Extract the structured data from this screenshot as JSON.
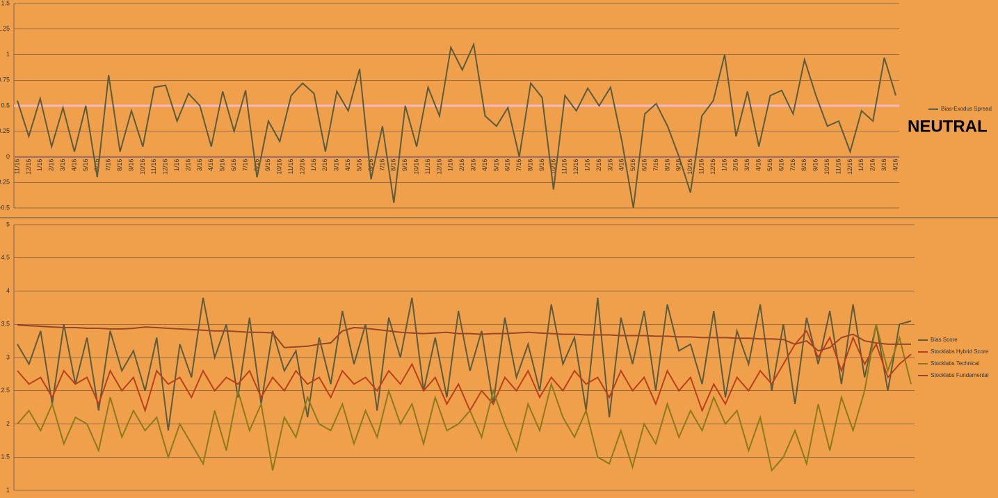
{
  "chart_data": [
    {
      "type": "line",
      "annotation": "NEUTRAL",
      "categories": [
        "11/16",
        "12/16",
        "1/16",
        "2/16",
        "3/16",
        "4/16",
        "5/16",
        "6/16",
        "7/16",
        "8/16",
        "9/16",
        "10/16",
        "11/16",
        "12/16",
        "1/16",
        "2/16",
        "3/16",
        "4/16",
        "5/16",
        "6/16",
        "7/16",
        "8/16",
        "9/16",
        "10/16",
        "11/16",
        "12/16",
        "1/16",
        "2/16",
        "3/16",
        "4/16",
        "5/16",
        "6/16",
        "7/16",
        "8/16",
        "9/16",
        "10/16",
        "11/16",
        "12/16",
        "1/16",
        "2/16",
        "3/16",
        "4/16",
        "5/16",
        "6/16",
        "7/16",
        "8/16",
        "9/16",
        "10/16",
        "11/16",
        "12/16",
        "1/16",
        "2/16",
        "3/16",
        "4/16",
        "5/16",
        "6/16",
        "7/16",
        "8/16",
        "9/16",
        "10/16",
        "11/16",
        "12/16",
        "1/16",
        "2/16",
        "3/16",
        "4/16",
        "5/16",
        "6/16",
        "7/16",
        "8/16",
        "9/16",
        "10/16",
        "11/16",
        "12/16",
        "1/16",
        "2/16",
        "3/16",
        "4/16"
      ],
      "series": [
        {
          "name": "Bias-Exodus Spread",
          "color": "#5b5b3e",
          "values": [
            0.55,
            0.2,
            0.57,
            0.1,
            0.48,
            0.05,
            0.5,
            -0.2,
            0.8,
            0.05,
            0.45,
            0.1,
            0.68,
            0.7,
            0.35,
            0.62,
            0.5,
            0.1,
            0.64,
            0.25,
            0.65,
            -0.2,
            0.35,
            0.15,
            0.6,
            0.72,
            0.62,
            0.05,
            0.64,
            0.45,
            0.86,
            -0.22,
            0.3,
            -0.45,
            0.5,
            0.1,
            0.68,
            0.4,
            1.07,
            0.85,
            1.1,
            0.4,
            0.3,
            0.48,
            0.0,
            0.72,
            0.58,
            -0.32,
            0.6,
            0.45,
            0.67,
            0.5,
            0.68,
            0.15,
            -0.5,
            0.42,
            0.52,
            0.3,
            0.0,
            -0.35,
            0.4,
            0.55,
            1.0,
            0.2,
            0.64,
            0.1,
            0.6,
            0.65,
            0.42,
            0.95,
            0.6,
            0.3,
            0.35,
            0.05,
            0.45,
            0.35,
            0.97,
            0.6
          ]
        }
      ],
      "reference_line": {
        "value": 0.5,
        "color": "#f4b8c0"
      },
      "ylim": [
        -0.5,
        1.5
      ],
      "yticks": [
        -0.5,
        -0.25,
        0,
        0.25,
        0.5,
        0.75,
        1,
        1.25,
        1.5
      ],
      "grid": true
    },
    {
      "type": "line",
      "series": [
        {
          "name": "Bias Score",
          "color": "#5b5b3e",
          "values": [
            3.2,
            2.9,
            3.4,
            2.3,
            3.5,
            2.6,
            3.3,
            2.2,
            3.4,
            2.8,
            3.1,
            2.5,
            3.3,
            1.9,
            3.2,
            2.7,
            3.9,
            3.0,
            3.5,
            2.4,
            3.6,
            2.3,
            3.4,
            2.8,
            3.1,
            2.1,
            3.3,
            2.6,
            3.7,
            2.9,
            3.5,
            2.2,
            3.6,
            3.0,
            3.9,
            2.5,
            3.3,
            2.4,
            3.7,
            2.8,
            3.4,
            2.3,
            3.6,
            2.7,
            3.2,
            2.5,
            3.8,
            2.9,
            3.3,
            2.2,
            3.9,
            2.1,
            3.6,
            2.9,
            3.7,
            2.5,
            3.8,
            3.1,
            3.2,
            2.6,
            3.7,
            2.4,
            3.4,
            2.9,
            3.8,
            2.5,
            3.5,
            2.3,
            3.6,
            2.9,
            3.7,
            2.6,
            3.8,
            2.7,
            3.5,
            2.5,
            3.5,
            3.55
          ]
        },
        {
          "name": "Stocklabs Hybrid Score",
          "color": "#b8401c",
          "values": [
            2.8,
            2.6,
            2.7,
            2.4,
            2.8,
            2.6,
            2.7,
            2.3,
            2.8,
            2.5,
            2.7,
            2.2,
            2.8,
            2.6,
            2.7,
            2.4,
            2.8,
            2.5,
            2.7,
            2.6,
            2.8,
            2.4,
            2.7,
            2.5,
            2.8,
            2.6,
            2.7,
            2.4,
            2.8,
            2.6,
            2.7,
            2.5,
            2.8,
            2.6,
            2.9,
            2.5,
            2.7,
            2.3,
            2.6,
            2.2,
            2.5,
            2.3,
            2.7,
            2.5,
            2.8,
            2.4,
            2.7,
            2.5,
            2.8,
            2.6,
            2.7,
            2.4,
            2.8,
            2.5,
            2.7,
            2.3,
            2.8,
            2.5,
            2.7,
            2.2,
            2.6,
            2.3,
            2.7,
            2.5,
            2.8,
            2.6,
            2.9,
            3.2,
            3.4,
            3.0,
            3.3,
            2.8,
            3.3,
            2.9,
            3.2,
            2.7,
            2.9,
            3.05
          ]
        },
        {
          "name": "Stocklabs Technical",
          "color": "#8c7a1a",
          "values": [
            2.0,
            2.2,
            1.9,
            2.3,
            1.7,
            2.1,
            2.0,
            1.6,
            2.4,
            1.8,
            2.2,
            1.9,
            2.1,
            1.5,
            2.0,
            1.7,
            1.4,
            2.2,
            1.6,
            2.5,
            1.9,
            2.3,
            1.3,
            2.1,
            1.8,
            2.4,
            2.0,
            1.9,
            2.3,
            1.7,
            2.2,
            1.8,
            2.5,
            2.0,
            2.3,
            1.7,
            2.4,
            1.9,
            2.0,
            2.2,
            1.8,
            2.5,
            2.0,
            1.6,
            2.3,
            1.9,
            2.6,
            2.1,
            1.8,
            2.2,
            1.5,
            1.4,
            1.9,
            1.35,
            2.0,
            1.7,
            2.3,
            1.8,
            2.2,
            1.9,
            2.4,
            2.0,
            2.2,
            1.6,
            2.1,
            1.3,
            1.5,
            1.9,
            1.4,
            2.3,
            1.6,
            2.4,
            1.9,
            2.5,
            3.5,
            2.8,
            3.3,
            2.6
          ]
        },
        {
          "name": "Stocklabs Fundamental",
          "color": "#9a4428",
          "values": [
            3.49,
            3.48,
            3.47,
            3.46,
            3.45,
            3.45,
            3.44,
            3.44,
            3.43,
            3.43,
            3.44,
            3.46,
            3.45,
            3.44,
            3.43,
            3.42,
            3.41,
            3.4,
            3.4,
            3.39,
            3.38,
            3.38,
            3.37,
            3.15,
            3.16,
            3.17,
            3.2,
            3.22,
            3.4,
            3.45,
            3.44,
            3.42,
            3.4,
            3.38,
            3.37,
            3.36,
            3.37,
            3.38,
            3.36,
            3.36,
            3.35,
            3.36,
            3.36,
            3.37,
            3.38,
            3.37,
            3.36,
            3.35,
            3.35,
            3.34,
            3.34,
            3.34,
            3.33,
            3.33,
            3.33,
            3.32,
            3.32,
            3.31,
            3.31,
            3.3,
            3.3,
            3.3,
            3.29,
            3.29,
            3.28,
            3.28,
            3.27,
            3.2,
            3.25,
            3.1,
            3.15,
            3.3,
            3.35,
            3.25,
            3.22,
            3.2,
            3.2,
            3.2
          ]
        }
      ],
      "ylim": [
        1,
        5
      ],
      "yticks": [
        1,
        1.5,
        2,
        2.5,
        3,
        3.5,
        4,
        4.5,
        5
      ],
      "grid": true
    }
  ]
}
